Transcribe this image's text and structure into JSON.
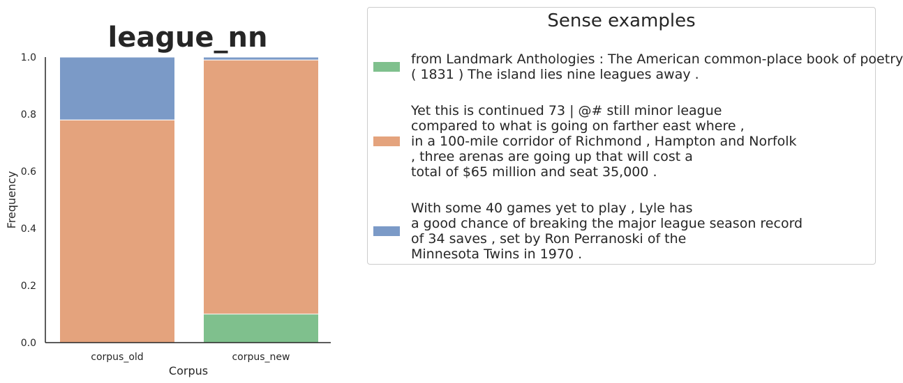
{
  "chart_data": {
    "type": "bar",
    "stacked": true,
    "title": "league_nn",
    "xlabel": "Corpus",
    "ylabel": "Frequency",
    "ylim": [
      0,
      1.0
    ],
    "yticks": [
      "0.0",
      "0.2",
      "0.4",
      "0.6",
      "0.8",
      "1.0"
    ],
    "categories": [
      "corpus_old",
      "corpus_new"
    ],
    "grid": false,
    "series": [
      {
        "color": "#7fc08d",
        "values": [
          0.0,
          0.1
        ]
      },
      {
        "color": "#e4a37d",
        "values": [
          0.78,
          0.89
        ]
      },
      {
        "color": "#7b9ac7",
        "values": [
          0.22,
          0.01
        ]
      }
    ]
  },
  "legend": {
    "title": "Sense examples",
    "placement": "right",
    "entries": [
      {
        "color": "#7fc08d",
        "text": "from Landmark Anthologies : The American common-place book of poetry\n( 1831 ) The island lies nine leagues away ."
      },
      {
        "color": "#e4a37d",
        "text": "Yet this is continued 73 | @# still minor league\ncompared to what is going on farther east where ,\nin a 100-mile corridor of Richmond , Hampton and Norfolk\n, three arenas are going up that will cost a\ntotal of $65 million and seat 35,000 ."
      },
      {
        "color": "#7b9ac7",
        "text": "With some 40 games yet to play , Lyle has\na good chance of breaking the major league season record\nof 34 saves , set by Ron Perranoski of the\nMinnesota Twins in 1970 ."
      }
    ]
  }
}
